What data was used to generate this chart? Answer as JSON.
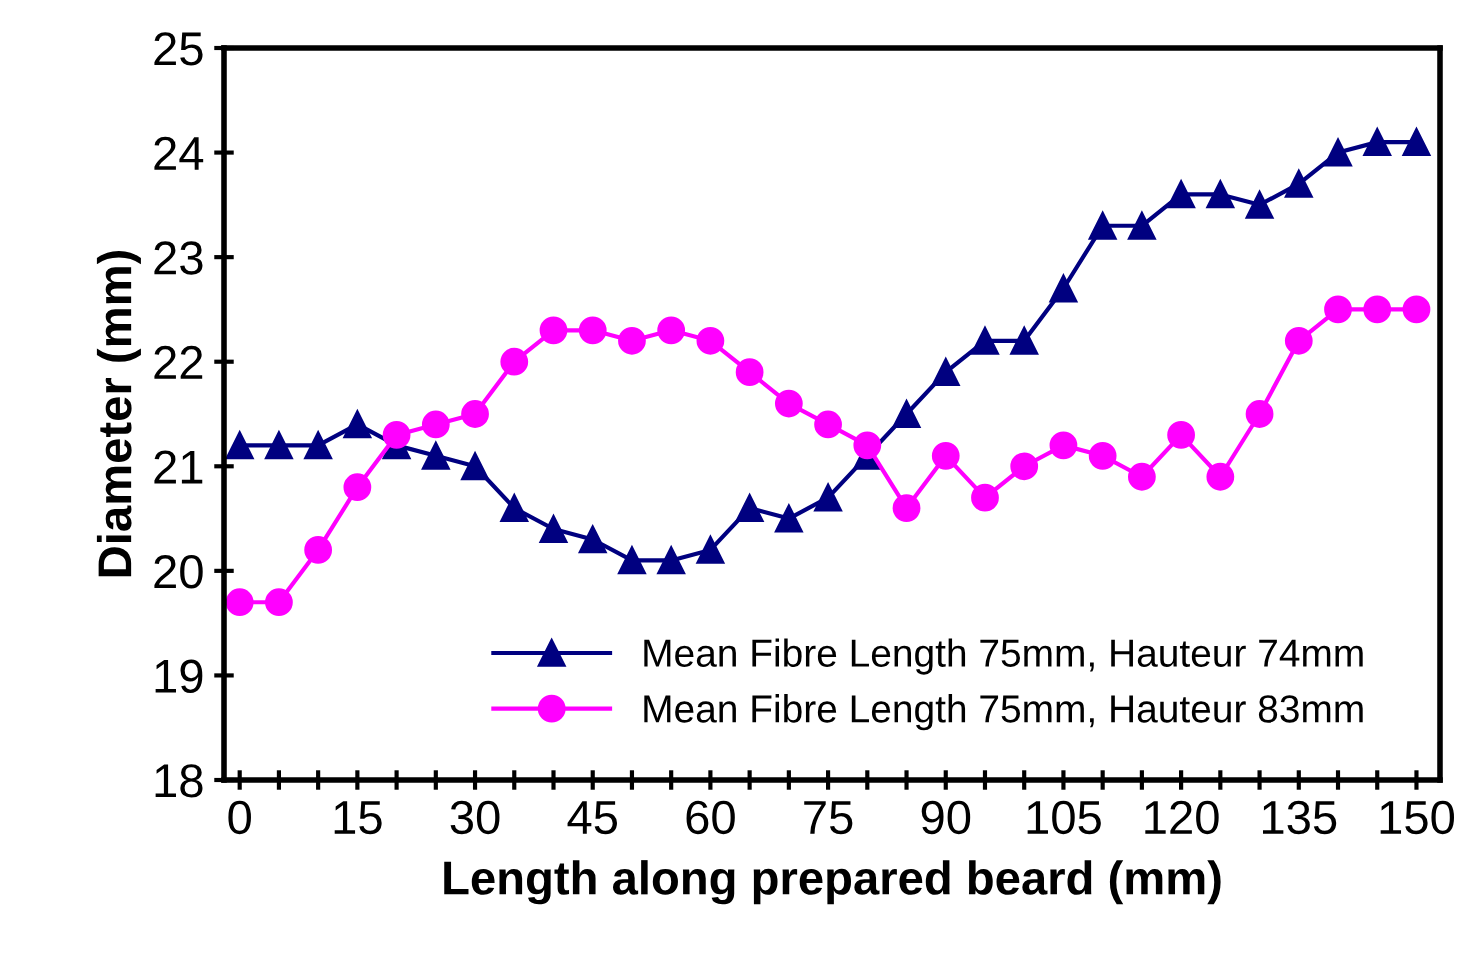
{
  "chart_data": {
    "type": "line",
    "xlabel": "Length along prepared beard (mm)",
    "ylabel": "Diameter (mm)",
    "x": [
      0,
      5,
      10,
      15,
      20,
      25,
      30,
      35,
      40,
      45,
      50,
      55,
      60,
      65,
      70,
      75,
      80,
      85,
      90,
      95,
      100,
      105,
      110,
      115,
      120,
      125,
      130,
      135,
      140,
      145,
      150
    ],
    "series": [
      {
        "name": "Mean Fibre Length 75mm, Hauteur 74mm",
        "color": "#000080",
        "marker": "triangle",
        "values": [
          21.2,
          21.2,
          21.2,
          21.4,
          21.2,
          21.1,
          21.0,
          20.6,
          20.4,
          20.3,
          20.1,
          20.1,
          20.2,
          20.6,
          20.5,
          20.7,
          21.1,
          21.5,
          21.9,
          22.2,
          22.2,
          22.7,
          23.3,
          23.3,
          23.6,
          23.6,
          23.5,
          23.7,
          24.0,
          24.1,
          24.1
        ]
      },
      {
        "name": "Mean Fibre Length 75mm, Hauteur 83mm",
        "color": "#ff00ff",
        "marker": "circle",
        "values": [
          19.7,
          19.7,
          20.2,
          20.8,
          21.3,
          21.4,
          21.5,
          22.0,
          22.3,
          22.3,
          22.2,
          22.3,
          22.2,
          21.9,
          21.6,
          21.4,
          21.2,
          20.6,
          21.1,
          20.7,
          21.0,
          21.2,
          21.1,
          20.9,
          21.3,
          20.9,
          21.5,
          22.2,
          22.5,
          22.5,
          22.5
        ]
      }
    ],
    "xlim": [
      -2,
      153
    ],
    "xticks": [
      0,
      {
        "value": 5,
        "label": null
      },
      {
        "value": 10,
        "label": null
      },
      15,
      {
        "value": 20,
        "label": null
      },
      {
        "value": 25,
        "label": null
      },
      30,
      {
        "value": 35,
        "label": null
      },
      {
        "value": 40,
        "label": null
      },
      45,
      {
        "value": 50,
        "label": null
      },
      {
        "value": 55,
        "label": null
      },
      60,
      {
        "value": 65,
        "label": null
      },
      {
        "value": 70,
        "label": null
      },
      75,
      {
        "value": 80,
        "label": null
      },
      {
        "value": 85,
        "label": null
      },
      90,
      {
        "value": 95,
        "label": null
      },
      {
        "value": 100,
        "label": null
      },
      105,
      {
        "value": 110,
        "label": null
      },
      {
        "value": 115,
        "label": null
      },
      120,
      {
        "value": 125,
        "label": null
      },
      {
        "value": 130,
        "label": null
      },
      135,
      {
        "value": 140,
        "label": null
      },
      {
        "value": 145,
        "label": null
      },
      150
    ],
    "ylim": [
      18,
      25
    ],
    "yticks": [
      18,
      19,
      20,
      21,
      22,
      23,
      24,
      25
    ],
    "grid": false,
    "legend": "bottom",
    "line_style": "solid"
  }
}
